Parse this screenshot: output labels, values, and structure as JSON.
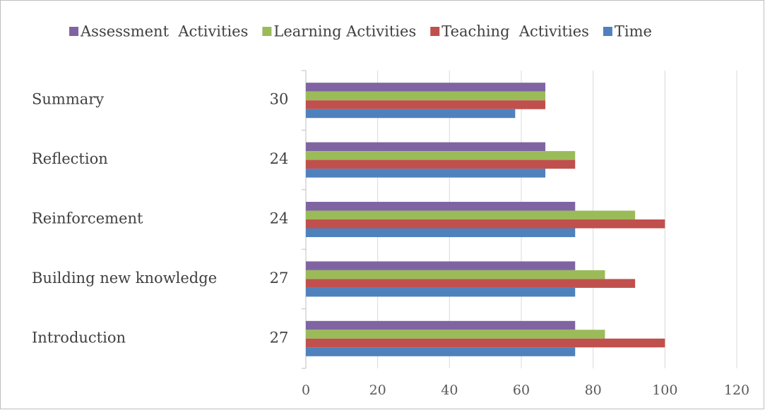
{
  "chart_data": {
    "type": "hbar",
    "categories": [
      "Introduction",
      "Building new knowledge",
      "Reinforcement",
      "Reflection",
      "Summary"
    ],
    "sub_labels": [
      27,
      27,
      24,
      24,
      30
    ],
    "series": [
      {
        "name": "Assessment  Activities",
        "color": "#8064a2",
        "values": [
          75,
          75,
          75,
          66.7,
          66.7
        ]
      },
      {
        "name": "Learning Activities",
        "color": "#9bbb59",
        "values": [
          83.3,
          83.3,
          91.7,
          75,
          66.7
        ]
      },
      {
        "name": "Teaching  Activities",
        "color": "#c0504d",
        "values": [
          100,
          91.7,
          100,
          75,
          66.7
        ]
      },
      {
        "name": "Time",
        "color": "#4f81bd",
        "values": [
          75,
          75,
          75,
          66.7,
          58.3
        ]
      }
    ],
    "xlim": [
      0,
      120
    ],
    "xticks": [
      0,
      20,
      40,
      60,
      80,
      100,
      120
    ],
    "grid": true,
    "legend": "top"
  }
}
